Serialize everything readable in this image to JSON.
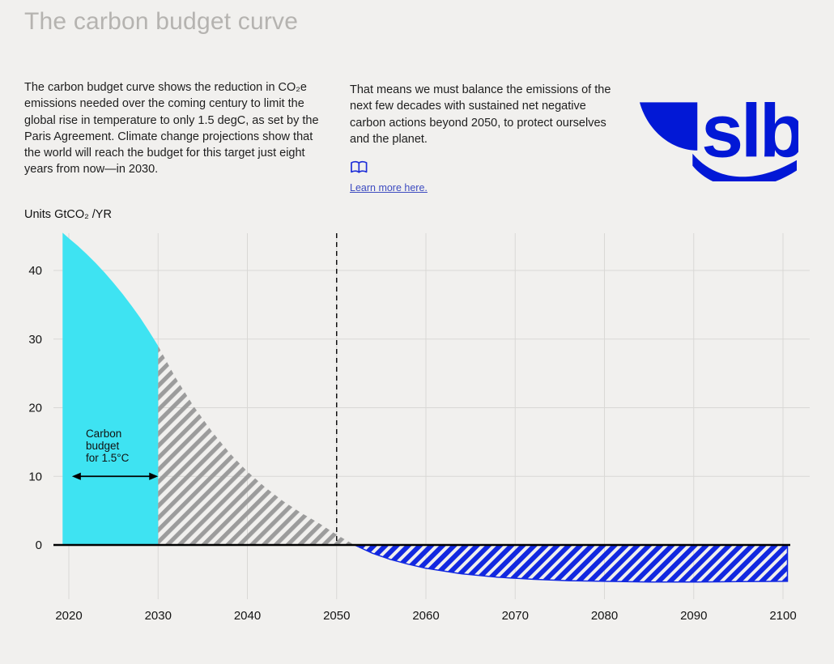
{
  "header": {
    "title": "The carbon budget curve"
  },
  "intro": {
    "left_text": "The carbon budget curve shows the reduction in CO₂e emissions needed over the coming century to limit the global rise in temperature to only 1.5 degC, as set by the Paris Agreement. Climate change projections show that the world will reach the budget for this target just eight years from now—in 2030.",
    "right_text": "That means we must balance the emissions of the next few decades with sustained net negative carbon actions beyond 2050, to protect ourselves and the planet.",
    "learn_more_label": "Learn more here.",
    "book_icon": "open-book-icon"
  },
  "logo": {
    "text": "slb",
    "color": "#0218D6"
  },
  "chart_data": {
    "type": "area",
    "title": "",
    "ylabel": "Units GtCO₂ /YR",
    "xlabel": "",
    "x_ticks": [
      2020,
      2030,
      2040,
      2050,
      2060,
      2070,
      2080,
      2090,
      2100
    ],
    "y_ticks": [
      0,
      10,
      20,
      30,
      40
    ],
    "xlim": [
      2019.3,
      2100.5
    ],
    "ylim": [
      -8,
      47
    ],
    "grid": true,
    "legend": false,
    "dashed_line_x": 2050,
    "annotation": {
      "lines": [
        "Carbon",
        "budget",
        "for 1.5°C"
      ],
      "x": 2021.9,
      "y": 15.7,
      "arrow": {
        "x1": 2020.35,
        "x2": 2030,
        "y": 10
      }
    },
    "colors": {
      "budget_fill": "#3EE3F2",
      "overshoot_hatch": "#9C9C9C",
      "negative_hatch": "#1228E0",
      "grid": "#D9D8D5",
      "axis": "#000000"
    },
    "segments": {
      "budget": {
        "x_range": [
          2019.3,
          2030
        ]
      },
      "overshoot": {
        "x_range": [
          2030,
          2052
        ]
      },
      "net_negative": {
        "x_range": [
          2052,
          2100.5
        ]
      }
    },
    "series": [
      {
        "name": "emissions-pathway",
        "x": [
          2019.3,
          2020,
          2021,
          2022,
          2023,
          2024,
          2025,
          2026,
          2027,
          2028,
          2029,
          2030,
          2032,
          2034,
          2036,
          2038,
          2040,
          2042,
          2044,
          2046,
          2048,
          2050,
          2052,
          2054,
          2056,
          2058,
          2060,
          2064,
          2068,
          2072,
          2076,
          2080,
          2085,
          2090,
          2095,
          2100.5
        ],
        "y": [
          45.5,
          44.7,
          43.6,
          42.4,
          41.1,
          39.7,
          38.2,
          36.6,
          34.9,
          33.1,
          31.1,
          29.0,
          24.3,
          20.2,
          16.6,
          13.4,
          10.7,
          8.4,
          6.4,
          4.7,
          3.2,
          1.5,
          0,
          -1.2,
          -2.1,
          -2.8,
          -3.4,
          -4.2,
          -4.7,
          -5.0,
          -5.2,
          -5.3,
          -5.4,
          -5.4,
          -5.35,
          -5.3
        ]
      }
    ]
  }
}
